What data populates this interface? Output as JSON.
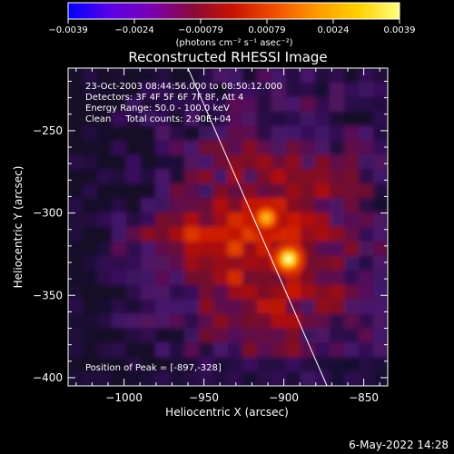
{
  "colorbar": {
    "ticks": [
      "-0.0039",
      "-0.0024",
      "-0.00079",
      "0.00079",
      "0.0024",
      "0.0039"
    ],
    "unit": "(photons cm⁻² s⁻¹ asec⁻²)",
    "colors": [
      "#0000ff",
      "#5a00e6",
      "#7a00b4",
      "#8a0a3a",
      "#c81400",
      "#f05000",
      "#ff9a00",
      "#ffd000",
      "#ffff80"
    ]
  },
  "chart_data": {
    "type": "heatmap",
    "title": "Reconstructed RHESSI Image",
    "xlabel": "Heliocentric X (arcsec)",
    "ylabel": "Heliocentric Y (arcsec)",
    "xlim": [
      -1035,
      -835
    ],
    "ylim": [
      -405,
      -212
    ],
    "xticks": [
      -1000,
      -950,
      -900,
      -850
    ],
    "yticks": [
      -250,
      -300,
      -350,
      -400
    ],
    "xtick_labels": [
      "−1000",
      "−950",
      "−900",
      "−850"
    ],
    "ytick_labels": [
      "−250",
      "−300",
      "−350",
      "−400"
    ],
    "sources": [
      {
        "x": -911,
        "y": -303,
        "peak": 0.0033
      },
      {
        "x": -897,
        "y": -328,
        "peak": 0.0039
      }
    ],
    "limb_line": [
      [
        -960,
        -212
      ],
      [
        -873,
        -405
      ]
    ],
    "annotations": [
      "23-Oct-2003 08:44:56.000 to 08:50:12.000",
      "Detectors: 3F 4F 5F 6F 7F 8F, Att 4",
      "Energy Range: 50.0 - 100.0 keV",
      "Clean     Total counts: 2.90E+04"
    ],
    "peak_label": "Position of Peak = [-897,-328]"
  },
  "footer": {
    "timestamp": "6-May-2022 14:28"
  }
}
